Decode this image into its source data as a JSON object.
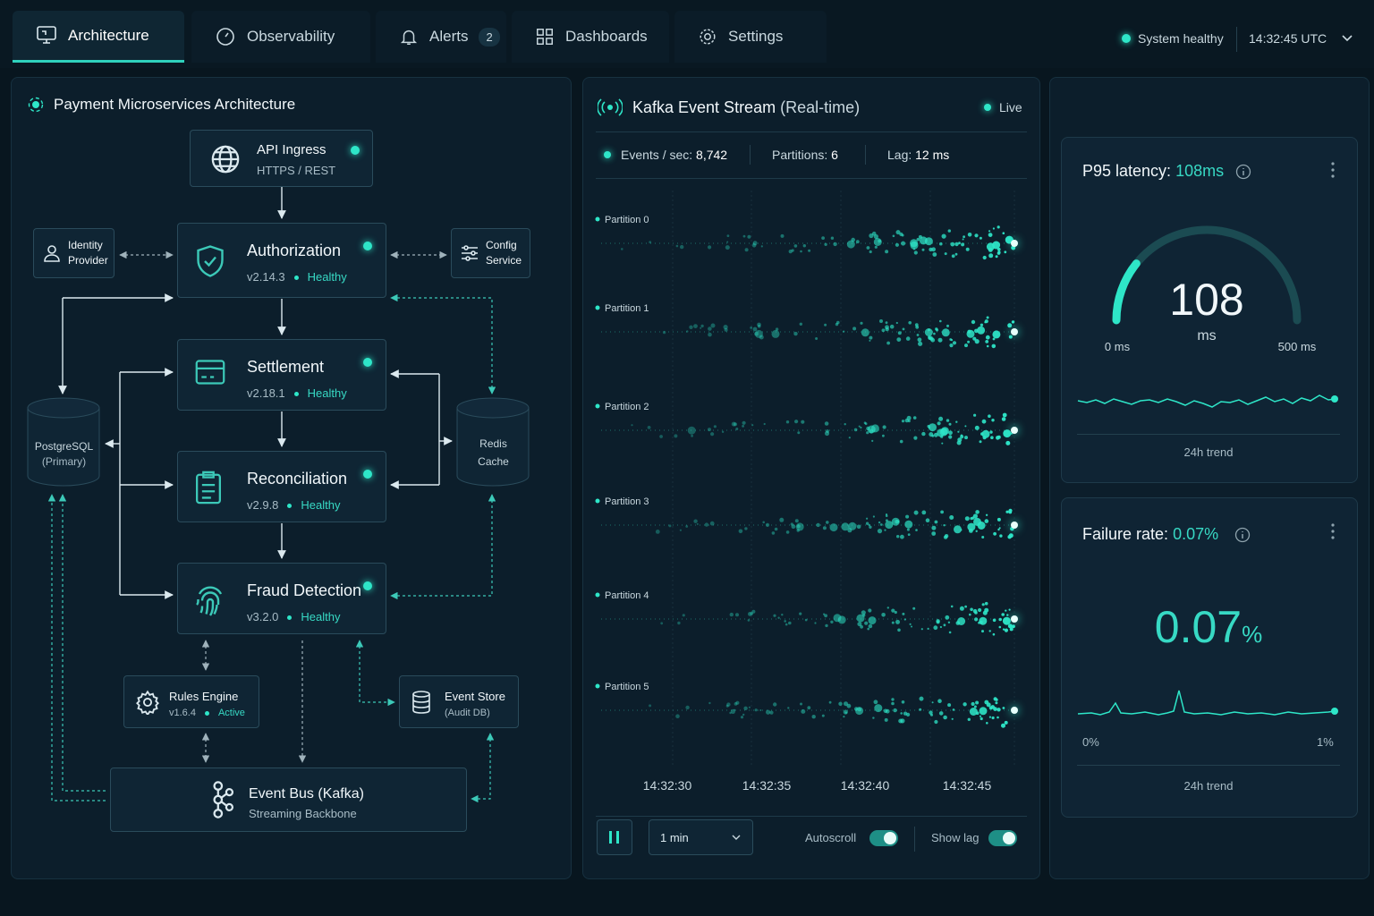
{
  "nav": {
    "tabs": [
      {
        "label": "Architecture"
      },
      {
        "label": "Observability"
      },
      {
        "label": "Alerts",
        "badge": "2"
      },
      {
        "label": "Dashboards"
      },
      {
        "label": "Settings"
      }
    ],
    "status": "System healthy",
    "time": "14:32:45 UTC"
  },
  "architecture": {
    "title": "Payment Microservices Architecture",
    "nodes": [
      {
        "label": "API Ingress",
        "sub": "HTTPS / REST"
      },
      {
        "label": "Authorization",
        "version": "v2.14.3",
        "status": "Healthy"
      },
      {
        "label": "Settlement",
        "version": "v2.18.1",
        "status": "Healthy"
      },
      {
        "label": "Reconciliation",
        "version": "v2.9.8",
        "status": "Healthy"
      },
      {
        "label": "Fraud Detection",
        "version": "v3.2.0",
        "status": "Healthy"
      },
      {
        "label": "Identity Provider"
      },
      {
        "label": "Config Service"
      },
      {
        "label": "PostgreSQL",
        "sub": "(Primary)"
      },
      {
        "label": "Redis Cache"
      },
      {
        "label": "Rules Engine",
        "version": "v1.6.4",
        "status": "Active"
      },
      {
        "label": "Event Store",
        "sub": "(Audit DB)"
      },
      {
        "label": "Event Bus (Kafka)",
        "sub": "Streaming Backbone"
      }
    ]
  },
  "stream": {
    "title": "Kafka Event Stream",
    "title_note": "(Real-time)",
    "live": "Live",
    "stats": [
      {
        "label": "Events / sec:",
        "value": "8,742"
      },
      {
        "label": "Partitions:",
        "value": "6"
      },
      {
        "label": "Lag:",
        "value": "12 ms"
      }
    ],
    "partitions": [
      "Partition 0",
      "Partition 1",
      "Partition 2",
      "Partition 3",
      "Partition 4",
      "Partition 5"
    ],
    "times": [
      "14:32:30",
      "14:32:35",
      "14:32:40",
      "14:32:45"
    ],
    "window": "1 min",
    "toggles": [
      "Autoscroll",
      "Show lag"
    ]
  },
  "latency": {
    "title": "P95 latency:",
    "value": "108ms",
    "gauge": {
      "value": 108,
      "unit": "ms",
      "min": {
        "value": 0,
        "label": "0 ms"
      },
      "max": {
        "value": 500,
        "label": "500 ms"
      }
    },
    "trend": "24h trend"
  },
  "failure": {
    "title": "Failure rate:",
    "value": "0.07%",
    "big": "0.07",
    "unit": "%",
    "min": "0%",
    "max": "1%",
    "trend": "24h trend"
  }
}
